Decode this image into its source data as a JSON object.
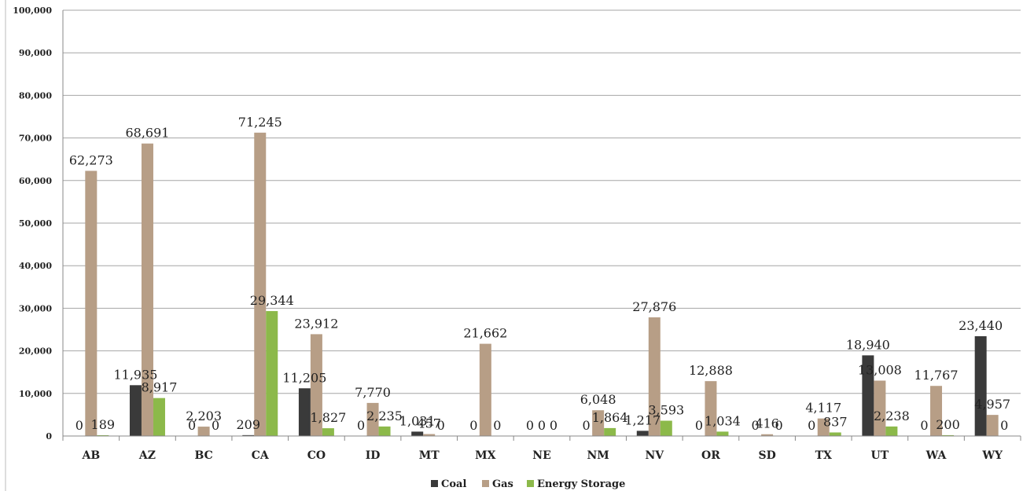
{
  "chart_data": {
    "type": "bar",
    "title": "",
    "xlabel": "",
    "ylabel": "",
    "ylim": [
      0,
      100000
    ],
    "yticks": [
      "0",
      "10,000",
      "20,000",
      "30,000",
      "40,000",
      "50,000",
      "60,000",
      "70,000",
      "80,000",
      "90,000",
      "100,000"
    ],
    "grid": true,
    "legend_position": "bottom",
    "categories": [
      "AB",
      "AZ",
      "BC",
      "CA",
      "CO",
      "ID",
      "MT",
      "MX",
      "NE",
      "NM",
      "NV",
      "OR",
      "SD",
      "TX",
      "UT",
      "WA",
      "WY"
    ],
    "series": [
      {
        "name": "Coal",
        "color": "#3a3a3a",
        "values": [
          0,
          11935,
          0,
          209,
          11205,
          0,
          1031,
          0,
          0,
          0,
          1217,
          0,
          0,
          0,
          18940,
          0,
          23440
        ],
        "labels": [
          "0",
          "11,935",
          "0",
          "209",
          "11,205",
          "0",
          "1,031",
          "0",
          "0",
          "0",
          "1,217",
          "0",
          "0",
          "0",
          "18,940",
          "0",
          "23,440"
        ]
      },
      {
        "name": "Gas",
        "color": "#b79e86",
        "values": [
          62273,
          68691,
          2203,
          71245,
          23912,
          7770,
          457,
          21662,
          0,
          6048,
          27876,
          12888,
          416,
          4117,
          13008,
          11767,
          4957
        ],
        "labels": [
          "62,273",
          "68,691",
          "2,203",
          "71,245",
          "23,912",
          "7,770",
          "457",
          "21,662",
          "0",
          "6,048",
          "27,876",
          "12,888",
          "416",
          "4,117",
          "13,008",
          "11,767",
          "4,957"
        ]
      },
      {
        "name": "Energy Storage",
        "color": "#8cb94a",
        "values": [
          189,
          8917,
          0,
          29344,
          1827,
          2235,
          0,
          0,
          0,
          1864,
          3593,
          1034,
          0,
          837,
          2238,
          200,
          0
        ],
        "labels": [
          "189",
          "8,917",
          "0",
          "29,344",
          "1,827",
          "2,235",
          "0",
          "0",
          "0",
          "1,864",
          "3,593",
          "1,034",
          "0",
          "837",
          "2,238",
          "200",
          "0"
        ]
      }
    ]
  }
}
